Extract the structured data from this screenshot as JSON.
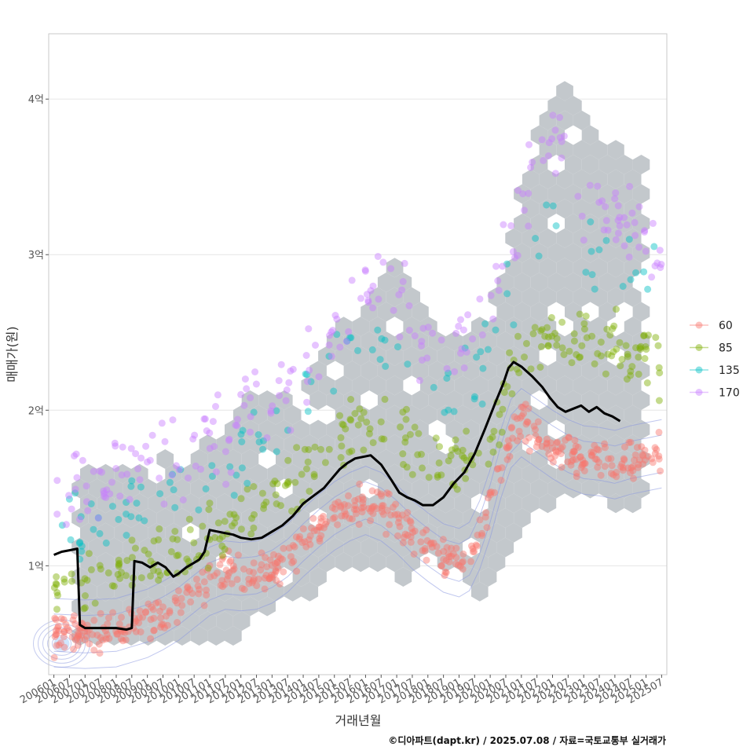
{
  "chart_data": {
    "type": "scatter",
    "title": "",
    "xlabel": "거래년월",
    "ylabel": "매매가(원)",
    "caption": "©디아파트(dapt.kr) / 2025.07.08 / 자료=국토교통부 실거래가",
    "x_tick_labels": [
      "200601",
      "200607",
      "200701",
      "200707",
      "200801",
      "200807",
      "200901",
      "200907",
      "201001",
      "201007",
      "201101",
      "201107",
      "201201",
      "201207",
      "201301",
      "201307",
      "201401",
      "201407",
      "201501",
      "201507",
      "201601",
      "201607",
      "201701",
      "201707",
      "201801",
      "201807",
      "201901",
      "201907",
      "202001",
      "202007",
      "202101",
      "202107",
      "202201",
      "202207",
      "202301",
      "202307",
      "202401",
      "202407",
      "202501",
      "202507"
    ],
    "y_ticks": [
      {
        "value": 1.0,
        "label": "1억"
      },
      {
        "value": 2.0,
        "label": "2억"
      },
      {
        "value": 3.0,
        "label": "3억"
      },
      {
        "value": 4.0,
        "label": "4억"
      }
    ],
    "x_range_months": [
      -2,
      236
    ],
    "ylim": [
      0.3,
      4.42
    ],
    "y_unit": "억원",
    "legend": [
      {
        "label": "60",
        "color": "#F8766D"
      },
      {
        "label": "85",
        "color": "#7CAE00"
      },
      {
        "label": "135",
        "color": "#00BFC4"
      },
      {
        "label": "170",
        "color": "#C77CFF"
      }
    ],
    "series": [
      {
        "name": "60",
        "trend": [
          [
            0,
            0.57
          ],
          [
            12,
            0.56
          ],
          [
            24,
            0.57
          ],
          [
            30,
            0.6
          ],
          [
            36,
            0.63
          ],
          [
            42,
            0.68
          ],
          [
            48,
            0.74
          ],
          [
            54,
            0.82
          ],
          [
            60,
            0.9
          ],
          [
            66,
            0.94
          ],
          [
            72,
            0.93
          ],
          [
            78,
            0.94
          ],
          [
            84,
            0.98
          ],
          [
            90,
            1.05
          ],
          [
            96,
            1.15
          ],
          [
            102,
            1.24
          ],
          [
            108,
            1.32
          ],
          [
            114,
            1.38
          ],
          [
            120,
            1.42
          ],
          [
            126,
            1.38
          ],
          [
            132,
            1.3
          ],
          [
            138,
            1.2
          ],
          [
            144,
            1.12
          ],
          [
            150,
            1.05
          ],
          [
            156,
            1.02
          ],
          [
            160,
            1.06
          ],
          [
            164,
            1.2
          ],
          [
            168,
            1.4
          ],
          [
            172,
            1.65
          ],
          [
            176,
            1.85
          ],
          [
            180,
            1.92
          ],
          [
            186,
            1.85
          ],
          [
            192,
            1.78
          ],
          [
            198,
            1.72
          ],
          [
            204,
            1.68
          ],
          [
            210,
            1.67
          ],
          [
            216,
            1.65
          ],
          [
            222,
            1.68
          ],
          [
            228,
            1.7
          ],
          [
            234,
            1.72
          ]
        ]
      },
      {
        "name": "85",
        "trend": [
          [
            0,
            0.88
          ],
          [
            12,
            0.9
          ],
          [
            24,
            0.95
          ],
          [
            36,
            1.0
          ],
          [
            48,
            1.08
          ],
          [
            60,
            1.2
          ],
          [
            72,
            1.32
          ],
          [
            84,
            1.45
          ],
          [
            96,
            1.58
          ],
          [
            108,
            1.78
          ],
          [
            120,
            1.95
          ],
          [
            132,
            1.85
          ],
          [
            144,
            1.7
          ],
          [
            156,
            1.62
          ],
          [
            168,
            1.85
          ],
          [
            180,
            2.35
          ],
          [
            192,
            2.5
          ],
          [
            204,
            2.45
          ],
          [
            216,
            2.4
          ],
          [
            228,
            2.35
          ],
          [
            234,
            2.3
          ]
        ]
      },
      {
        "name": "135",
        "trend": [
          [
            0,
            1.15
          ],
          [
            12,
            1.25
          ],
          [
            24,
            1.3
          ],
          [
            36,
            1.4
          ],
          [
            48,
            1.5
          ],
          [
            60,
            1.65
          ],
          [
            72,
            1.75
          ],
          [
            84,
            1.9
          ],
          [
            96,
            2.05
          ],
          [
            108,
            2.3
          ],
          [
            120,
            2.45
          ],
          [
            132,
            2.4
          ],
          [
            144,
            2.2
          ],
          [
            156,
            2.15
          ],
          [
            168,
            2.35
          ],
          [
            180,
            2.95
          ],
          [
            192,
            3.25
          ],
          [
            204,
            2.9
          ],
          [
            216,
            2.9
          ],
          [
            228,
            2.8
          ],
          [
            234,
            2.7
          ]
        ]
      },
      {
        "name": "170",
        "trend": [
          [
            0,
            1.45
          ],
          [
            12,
            1.5
          ],
          [
            24,
            1.55
          ],
          [
            36,
            1.6
          ],
          [
            48,
            1.7
          ],
          [
            60,
            1.85
          ],
          [
            72,
            1.95
          ],
          [
            84,
            2.05
          ],
          [
            96,
            2.2
          ],
          [
            108,
            2.5
          ],
          [
            120,
            2.85
          ],
          [
            132,
            2.7
          ],
          [
            144,
            2.5
          ],
          [
            156,
            2.4
          ],
          [
            168,
            2.6
          ],
          [
            180,
            3.3
          ],
          [
            192,
            3.8
          ],
          [
            204,
            3.3
          ],
          [
            216,
            3.3
          ],
          [
            228,
            3.1
          ],
          [
            234,
            3.0
          ]
        ]
      }
    ],
    "median_line": [
      [
        0,
        1.07
      ],
      [
        3,
        1.09
      ],
      [
        6,
        1.1
      ],
      [
        9,
        1.11
      ],
      [
        10,
        0.62
      ],
      [
        12,
        0.6
      ],
      [
        18,
        0.6
      ],
      [
        24,
        0.6
      ],
      [
        28,
        0.59
      ],
      [
        30,
        0.6
      ],
      [
        31,
        1.03
      ],
      [
        34,
        1.02
      ],
      [
        37,
        0.99
      ],
      [
        40,
        1.02
      ],
      [
        43,
        0.99
      ],
      [
        46,
        0.93
      ],
      [
        48,
        0.95
      ],
      [
        51,
        0.99
      ],
      [
        54,
        1.02
      ],
      [
        56,
        1.04
      ],
      [
        58,
        1.09
      ],
      [
        60,
        1.23
      ],
      [
        63,
        1.22
      ],
      [
        66,
        1.21
      ],
      [
        69,
        1.2
      ],
      [
        72,
        1.18
      ],
      [
        76,
        1.17
      ],
      [
        80,
        1.18
      ],
      [
        84,
        1.22
      ],
      [
        88,
        1.26
      ],
      [
        92,
        1.32
      ],
      [
        96,
        1.4
      ],
      [
        100,
        1.45
      ],
      [
        104,
        1.5
      ],
      [
        107,
        1.56
      ],
      [
        110,
        1.62
      ],
      [
        113,
        1.66
      ],
      [
        116,
        1.69
      ],
      [
        119,
        1.7
      ],
      [
        122,
        1.71
      ],
      [
        126,
        1.65
      ],
      [
        130,
        1.55
      ],
      [
        133,
        1.47
      ],
      [
        136,
        1.44
      ],
      [
        139,
        1.42
      ],
      [
        142,
        1.39
      ],
      [
        146,
        1.39
      ],
      [
        150,
        1.44
      ],
      [
        154,
        1.53
      ],
      [
        158,
        1.6
      ],
      [
        162,
        1.72
      ],
      [
        166,
        1.88
      ],
      [
        170,
        2.05
      ],
      [
        173,
        2.17
      ],
      [
        175,
        2.27
      ],
      [
        177,
        2.31
      ],
      [
        180,
        2.28
      ],
      [
        184,
        2.22
      ],
      [
        188,
        2.15
      ],
      [
        191,
        2.08
      ],
      [
        194,
        2.02
      ],
      [
        197,
        1.99
      ],
      [
        200,
        2.01
      ],
      [
        203,
        2.03
      ],
      [
        206,
        1.99
      ],
      [
        209,
        2.02
      ],
      [
        212,
        1.98
      ],
      [
        215,
        1.96
      ],
      [
        218,
        1.93
      ]
    ],
    "hexbin_region_upper": [
      [
        0,
        1.2
      ],
      [
        12,
        1.6
      ],
      [
        30,
        1.65
      ],
      [
        48,
        1.72
      ],
      [
        60,
        1.8
      ],
      [
        72,
        2.05
      ],
      [
        84,
        2.1
      ],
      [
        96,
        2.2
      ],
      [
        108,
        2.5
      ],
      [
        120,
        2.7
      ],
      [
        132,
        2.95
      ],
      [
        144,
        2.55
      ],
      [
        156,
        2.45
      ],
      [
        168,
        2.6
      ],
      [
        180,
        3.4
      ],
      [
        192,
        4.05
      ],
      [
        198,
        4.2
      ],
      [
        204,
        3.95
      ],
      [
        216,
        3.7
      ],
      [
        226,
        3.6
      ]
    ],
    "hexbin_region_lower": [
      [
        226,
        1.4
      ],
      [
        216,
        1.35
      ],
      [
        204,
        1.5
      ],
      [
        192,
        1.35
      ],
      [
        180,
        1.25
      ],
      [
        168,
        0.8
      ],
      [
        156,
        0.9
      ],
      [
        144,
        0.95
      ],
      [
        132,
        0.9
      ],
      [
        120,
        1.0
      ],
      [
        108,
        0.95
      ],
      [
        96,
        0.78
      ],
      [
        84,
        0.75
      ],
      [
        72,
        0.55
      ],
      [
        60,
        0.5
      ],
      [
        48,
        0.55
      ],
      [
        36,
        0.48
      ],
      [
        24,
        0.45
      ],
      [
        12,
        0.5
      ],
      [
        0,
        0.7
      ]
    ]
  }
}
